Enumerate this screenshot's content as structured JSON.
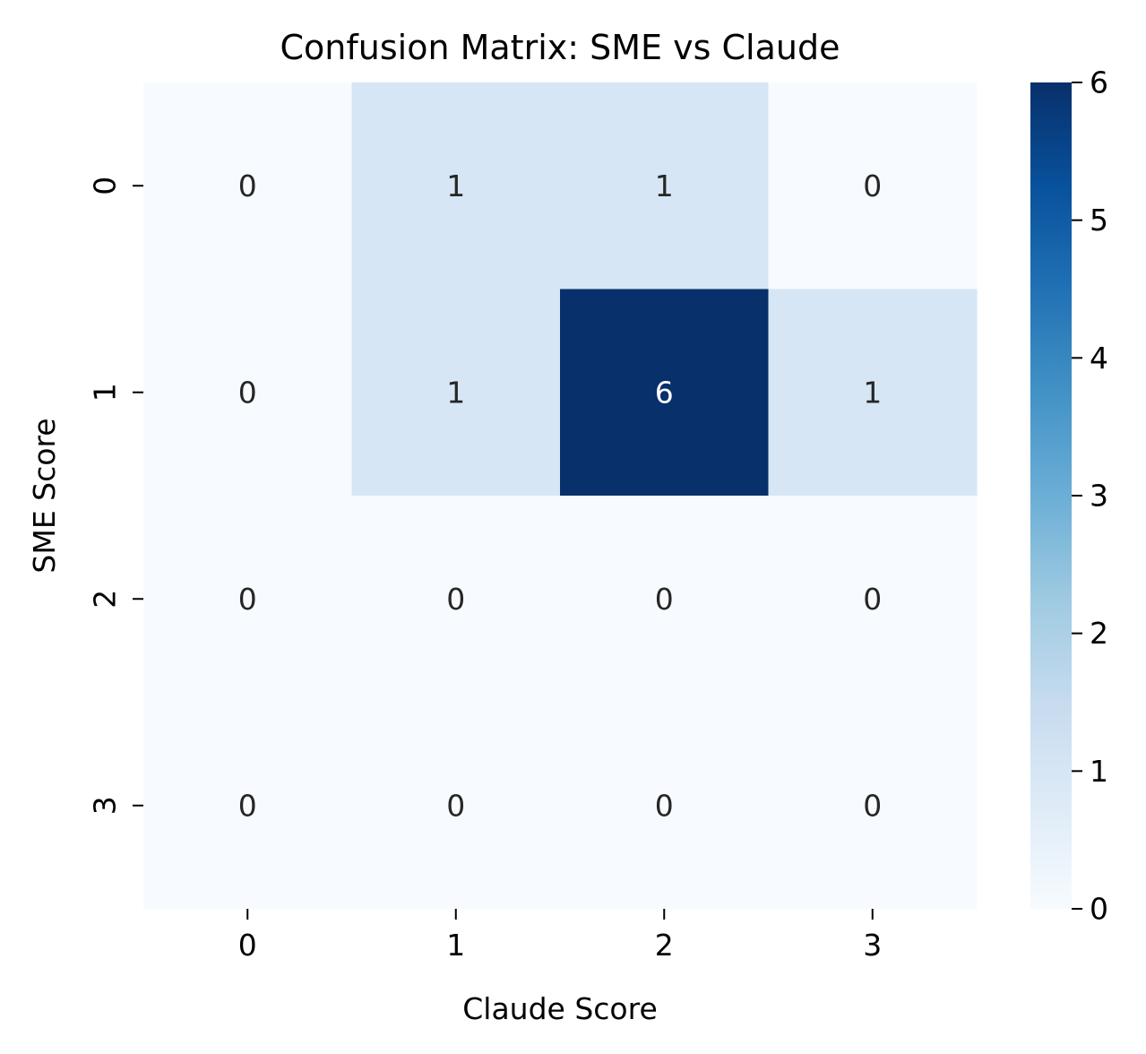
{
  "chart_data": {
    "type": "heatmap",
    "title": "Confusion Matrix: SME vs Claude",
    "xlabel": "Claude Score",
    "ylabel": "SME Score",
    "x_categories": [
      "0",
      "1",
      "2",
      "3"
    ],
    "y_categories": [
      "0",
      "1",
      "2",
      "3"
    ],
    "values": [
      [
        0,
        1,
        1,
        0
      ],
      [
        0,
        1,
        6,
        1
      ],
      [
        0,
        0,
        0,
        0
      ],
      [
        0,
        0,
        0,
        0
      ]
    ],
    "colormap": "Blues",
    "colorbar": {
      "min": 0,
      "max": 6,
      "ticks": [
        "0",
        "1",
        "2",
        "3",
        "4",
        "5",
        "6"
      ]
    },
    "colors": {
      "low": "#f7fbff",
      "high": "#08306b",
      "dark_text": "#262626",
      "light_text": "#ffffff"
    }
  }
}
